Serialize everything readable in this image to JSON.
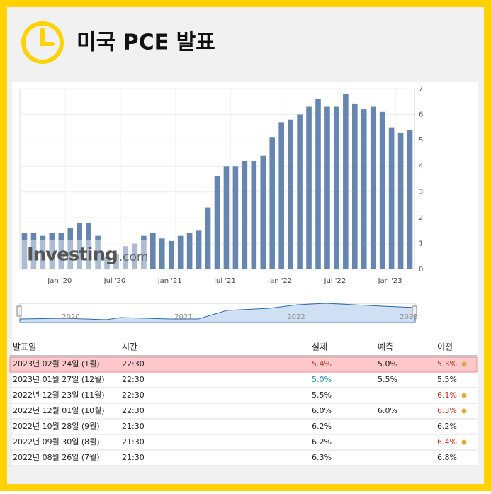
{
  "header": {
    "title": "미국 PCE 발표"
  },
  "chart_data": {
    "type": "bar",
    "categories": [
      null,
      null,
      null,
      null,
      "Jan '20",
      null,
      null,
      null,
      null,
      null,
      "Jul '20",
      null,
      null,
      null,
      null,
      null,
      "Jan '21",
      null,
      null,
      null,
      null,
      null,
      "Jul '21",
      null,
      null,
      null,
      null,
      null,
      "Jan '22",
      null,
      null,
      null,
      null,
      null,
      "Jul '22",
      null,
      null,
      null,
      null,
      null,
      "Jan '23",
      null,
      null
    ],
    "values": [
      1.4,
      1.4,
      1.3,
      1.4,
      1.4,
      1.6,
      1.8,
      1.8,
      1.3,
      0.5,
      0.6,
      0.9,
      1.0,
      1.3,
      1.4,
      1.2,
      1.1,
      1.3,
      1.4,
      1.5,
      2.4,
      3.6,
      4.0,
      4.0,
      4.2,
      4.2,
      4.4,
      5.1,
      5.7,
      5.8,
      6.0,
      6.3,
      6.6,
      6.3,
      6.3,
      6.8,
      6.4,
      6.2,
      6.3,
      6.1,
      5.5,
      5.3,
      5.4
    ],
    "color": "#6686b0",
    "ylim": [
      0,
      7
    ],
    "yticks": [
      0,
      1,
      2,
      3,
      4,
      5,
      6,
      7
    ],
    "grid": true,
    "watermark": "Investing",
    "watermark_suffix": ".com"
  },
  "navigator": {
    "labels": [
      "2020",
      "2021",
      "2022",
      "2023"
    ]
  },
  "table": {
    "header": [
      "발표일",
      "시간",
      "실제",
      "예측",
      "이전"
    ],
    "rows": [
      [
        "2023년 02월 24일 (1월)",
        "22:30",
        "5.4%",
        "5.0%",
        "5.3%"
      ],
      [
        "2023년 01월 27일 (12월)",
        "22:30",
        "5.0%",
        "5.5%",
        "5.5%"
      ],
      [
        "2022년 12월 23일 (11월)",
        "22:30",
        "5.5%",
        null,
        "6.1%"
      ],
      [
        "2022년 12월 01일 (10월)",
        "22:30",
        "6.0%",
        "6.0%",
        "6.3%"
      ],
      [
        "2022년 10월 28일 (9월)",
        "21:30",
        "6.2%",
        null,
        "6.2%"
      ],
      [
        "2022년 09월 30일 (8월)",
        "21:30",
        "6.2%",
        null,
        "6.4%"
      ],
      [
        "2022년 08월 26일 (7월)",
        "21:30",
        "6.3%",
        null,
        "6.8%"
      ]
    ]
  }
}
